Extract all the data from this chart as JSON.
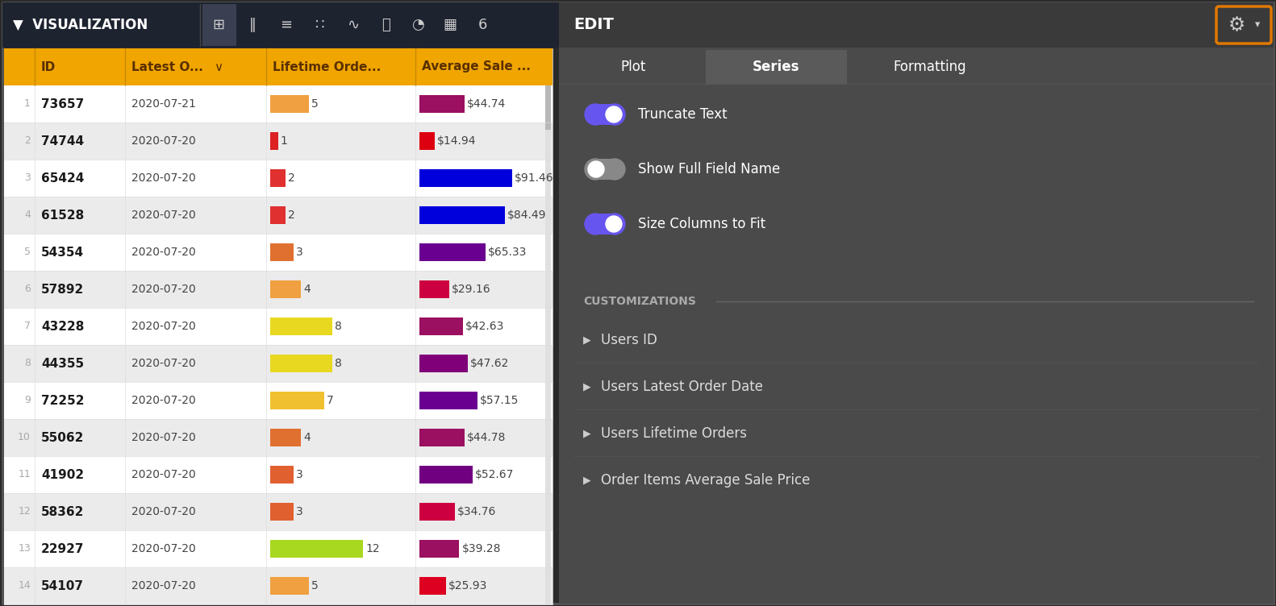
{
  "bg_color": "#2a2a2a",
  "top_bar_bg": "#1e2330",
  "table_bg": "#f0f0f0",
  "header_bg": "#f0a500",
  "header_text": "#5a3000",
  "row_odd": "#ffffff",
  "row_even": "#ebebeb",
  "edit_panel_bg": "#4a4a4a",
  "edit_header_bg": "#3a3a3a",
  "rows": [
    {
      "idx": 1,
      "id": "73657",
      "date": "2020-07-21",
      "orders": 5,
      "orders_color": "#f0a040",
      "price": 44.74,
      "price_color": "#9b1060"
    },
    {
      "idx": 2,
      "id": "74744",
      "date": "2020-07-20",
      "orders": 1,
      "orders_color": "#dd2020",
      "price": 14.94,
      "price_color": "#dd0010"
    },
    {
      "idx": 3,
      "id": "65424",
      "date": "2020-07-20",
      "orders": 2,
      "orders_color": "#e03030",
      "price": 91.46,
      "price_color": "#0000dd"
    },
    {
      "idx": 4,
      "id": "61528",
      "date": "2020-07-20",
      "orders": 2,
      "orders_color": "#e03030",
      "price": 84.49,
      "price_color": "#0000dd"
    },
    {
      "idx": 5,
      "id": "54354",
      "date": "2020-07-20",
      "orders": 3,
      "orders_color": "#e07030",
      "price": 65.33,
      "price_color": "#6a0090"
    },
    {
      "idx": 6,
      "id": "57892",
      "date": "2020-07-20",
      "orders": 4,
      "orders_color": "#f0a040",
      "price": 29.16,
      "price_color": "#cc0040"
    },
    {
      "idx": 7,
      "id": "43228",
      "date": "2020-07-20",
      "orders": 8,
      "orders_color": "#e8d820",
      "price": 42.63,
      "price_color": "#9b1060"
    },
    {
      "idx": 8,
      "id": "44355",
      "date": "2020-07-20",
      "orders": 8,
      "orders_color": "#e8d820",
      "price": 47.62,
      "price_color": "#80007a"
    },
    {
      "idx": 9,
      "id": "72252",
      "date": "2020-07-20",
      "orders": 7,
      "orders_color": "#f0c030",
      "price": 57.15,
      "price_color": "#6a0090"
    },
    {
      "idx": 10,
      "id": "55062",
      "date": "2020-07-20",
      "orders": 4,
      "orders_color": "#e07030",
      "price": 44.78,
      "price_color": "#9b1060"
    },
    {
      "idx": 11,
      "id": "41902",
      "date": "2020-07-20",
      "orders": 3,
      "orders_color": "#e06030",
      "price": 52.67,
      "price_color": "#700080"
    },
    {
      "idx": 12,
      "id": "58362",
      "date": "2020-07-20",
      "orders": 3,
      "orders_color": "#e06030",
      "price": 34.76,
      "price_color": "#cc0040"
    },
    {
      "idx": 13,
      "id": "22927",
      "date": "2020-07-20",
      "orders": 12,
      "orders_color": "#a8d820",
      "price": 39.28,
      "price_color": "#9b1060"
    },
    {
      "idx": 14,
      "id": "54107",
      "date": "2020-07-20",
      "orders": 5,
      "orders_color": "#f0a040",
      "price": 25.93,
      "price_color": "#dd0020"
    }
  ],
  "max_orders": 12,
  "max_price": 91.46,
  "toggle_truncate": true,
  "toggle_showfull": false,
  "toggle_sizefit": true,
  "toggle_labels": [
    "Truncate Text",
    "Show Full Field Name",
    "Size Columns to Fit"
  ],
  "toggle_states": [
    true,
    false,
    true
  ],
  "customizations": [
    "Users ID",
    "Users Latest Order Date",
    "Users Lifetime Orders",
    "Order Items Average Sale Price"
  ]
}
